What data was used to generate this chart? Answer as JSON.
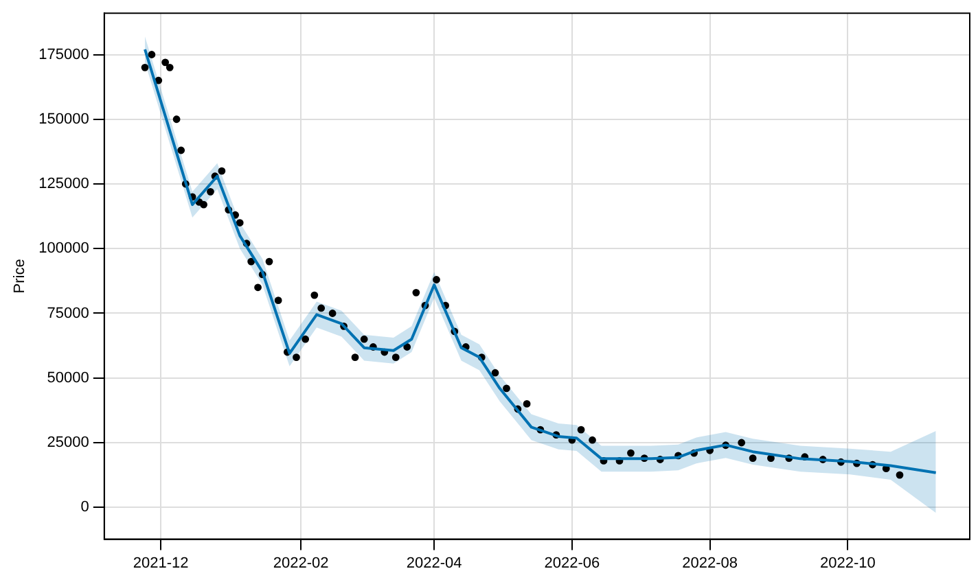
{
  "chart_data": {
    "type": "line",
    "ylabel": "Price",
    "xlim": [
      "2021-11-06",
      "2022-11-24"
    ],
    "ylim": [
      -12300,
      191000
    ],
    "xticks": [
      {
        "value": "2021-12-01",
        "label": "2021-12"
      },
      {
        "value": "2022-02-01",
        "label": "2022-02"
      },
      {
        "value": "2022-04-01",
        "label": "2022-04"
      },
      {
        "value": "2022-06-01",
        "label": "2022-06"
      },
      {
        "value": "2022-08-01",
        "label": "2022-08"
      },
      {
        "value": "2022-10-01",
        "label": "2022-10"
      }
    ],
    "yticks": [
      0,
      25000,
      50000,
      75000,
      100000,
      125000,
      150000,
      175000
    ],
    "grid": true,
    "series": [
      {
        "type": "scatter",
        "color": "#000000",
        "marker": "circle",
        "x": [
          "2021-11-24",
          "2021-11-27",
          "2021-11-30",
          "2021-12-03",
          "2021-12-05",
          "2021-12-08",
          "2021-12-10",
          "2021-12-12",
          "2021-12-15",
          "2021-12-18",
          "2021-12-20",
          "2021-12-23",
          "2021-12-25",
          "2021-12-28",
          "2021-12-31",
          "2022-01-03",
          "2022-01-05",
          "2022-01-08",
          "2022-01-10",
          "2022-01-13",
          "2022-01-15",
          "2022-01-18",
          "2022-01-22",
          "2022-01-26",
          "2022-01-30",
          "2022-02-03",
          "2022-02-07",
          "2022-02-10",
          "2022-02-15",
          "2022-02-20",
          "2022-02-25",
          "2022-03-01",
          "2022-03-05",
          "2022-03-10",
          "2022-03-15",
          "2022-03-20",
          "2022-03-24",
          "2022-03-28",
          "2022-04-02",
          "2022-04-06",
          "2022-04-10",
          "2022-04-15",
          "2022-04-22",
          "2022-04-28",
          "2022-05-03",
          "2022-05-08",
          "2022-05-12",
          "2022-05-18",
          "2022-05-25",
          "2022-06-01",
          "2022-06-05",
          "2022-06-10",
          "2022-06-15",
          "2022-06-22",
          "2022-06-27",
          "2022-07-03",
          "2022-07-10",
          "2022-07-18",
          "2022-07-25",
          "2022-08-01",
          "2022-08-08",
          "2022-08-15",
          "2022-08-20",
          "2022-08-28",
          "2022-09-05",
          "2022-09-12",
          "2022-09-20",
          "2022-09-28",
          "2022-10-05",
          "2022-10-12",
          "2022-10-18",
          "2022-10-24"
        ],
        "values": [
          170000,
          175000,
          165000,
          172000,
          170000,
          150000,
          138000,
          125000,
          120000,
          118000,
          117000,
          122000,
          128000,
          130000,
          115000,
          113000,
          110000,
          102000,
          95000,
          85000,
          90000,
          95000,
          80000,
          60000,
          58000,
          65000,
          82000,
          77000,
          75000,
          70000,
          58000,
          65000,
          62000,
          60000,
          58000,
          62000,
          83000,
          78000,
          88000,
          78000,
          68000,
          62000,
          58000,
          52000,
          46000,
          38000,
          40000,
          30000,
          28000,
          26000,
          30000,
          26000,
          18000,
          18000,
          21000,
          19000,
          18500,
          20000,
          21000,
          22000,
          24000,
          25000,
          19000,
          19000,
          19000,
          19500,
          18500,
          17500,
          17000,
          16500,
          15000,
          12500
        ]
      },
      {
        "color": "#0072b2",
        "x": [
          "2021-11-24",
          "2021-12-15",
          "2021-12-26",
          "2022-01-05",
          "2022-01-15",
          "2022-01-27",
          "2022-02-08",
          "2022-02-19",
          "2022-03-01",
          "2022-03-14",
          "2022-03-22",
          "2022-04-01",
          "2022-04-13",
          "2022-04-21",
          "2022-04-30",
          "2022-05-14",
          "2022-05-26",
          "2022-06-03",
          "2022-06-14",
          "2022-07-06",
          "2022-07-18",
          "2022-07-26",
          "2022-08-08",
          "2022-08-20",
          "2022-09-10",
          "2022-10-02",
          "2022-10-20",
          "2022-11-09"
        ],
        "values": [
          177000,
          117000,
          128000,
          105000,
          91000,
          59500,
          74500,
          71000,
          61700,
          60600,
          65000,
          86000,
          61700,
          58000,
          46000,
          31000,
          27400,
          26800,
          18800,
          18800,
          19300,
          22000,
          24100,
          21500,
          18800,
          17700,
          16100,
          13400
        ],
        "lower": [
          172000,
          112000,
          123000,
          100000,
          86000,
          54500,
          69500,
          66000,
          56700,
          55600,
          60000,
          81000,
          56700,
          53000,
          41000,
          26000,
          22400,
          21800,
          13800,
          13800,
          14300,
          17000,
          19100,
          16500,
          13800,
          12700,
          10700,
          -2100
        ],
        "upper": [
          182000,
          122000,
          133000,
          110000,
          96000,
          64500,
          79500,
          76000,
          66700,
          65600,
          70000,
          91000,
          66700,
          63000,
          51000,
          36000,
          32400,
          31800,
          23800,
          23800,
          24300,
          27000,
          29100,
          26500,
          23800,
          22700,
          21500,
          29500
        ]
      }
    ]
  }
}
